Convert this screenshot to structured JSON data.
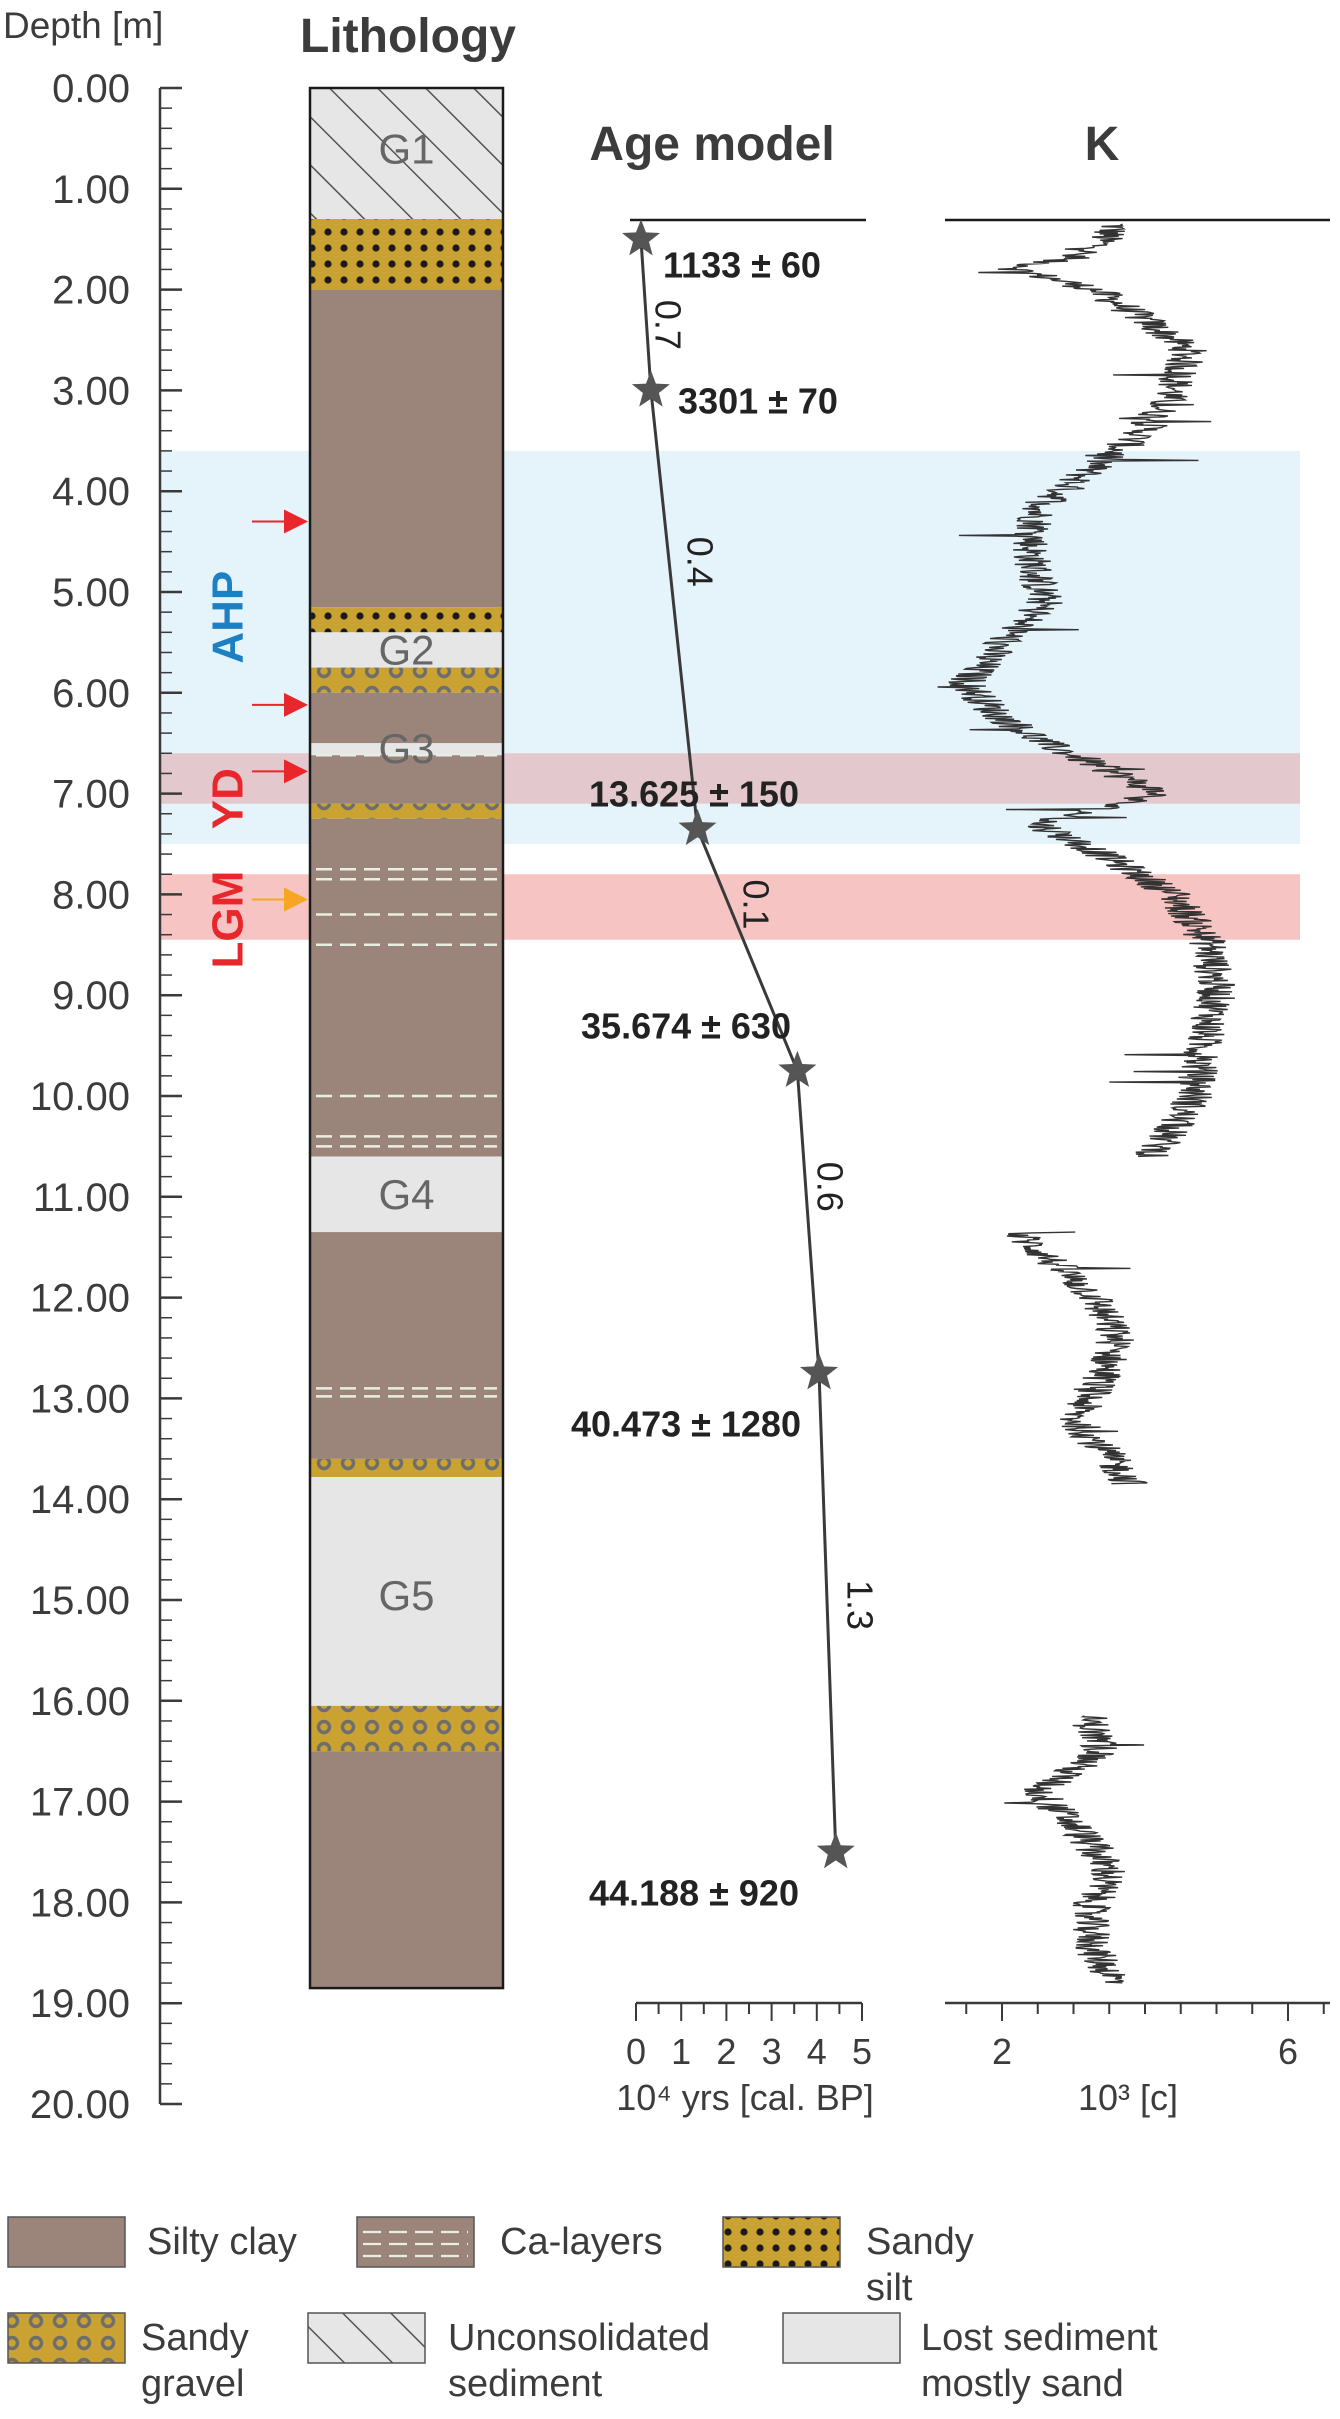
{
  "depth_axis": {
    "label": "Depth [m]",
    "ticks": [
      "0.00",
      "1.00",
      "2.00",
      "3.00",
      "4.00",
      "5.00",
      "6.00",
      "7.00",
      "8.00",
      "9.00",
      "10.00",
      "11.00",
      "12.00",
      "13.00",
      "14.00",
      "15.00",
      "16.00",
      "17.00",
      "18.00",
      "19.00",
      "20.00"
    ],
    "range": [
      0,
      20
    ]
  },
  "lithology": {
    "title": "Lithology",
    "units": [
      {
        "top": 0.0,
        "bottom": 1.3,
        "type": "unconsolidated"
      },
      {
        "top": 1.3,
        "bottom": 2.0,
        "type": "sandy_silt"
      },
      {
        "top": 2.0,
        "bottom": 5.15,
        "type": "silty_clay"
      },
      {
        "top": 5.15,
        "bottom": 5.4,
        "type": "sandy_silt"
      },
      {
        "top": 5.4,
        "bottom": 5.75,
        "type": "lost"
      },
      {
        "top": 5.75,
        "bottom": 6.0,
        "type": "sandy_gravel"
      },
      {
        "top": 6.0,
        "bottom": 6.5,
        "type": "silty_clay"
      },
      {
        "top": 6.5,
        "bottom": 6.62,
        "type": "lost"
      },
      {
        "top": 6.62,
        "bottom": 7.1,
        "type": "silty_clay"
      },
      {
        "top": 7.1,
        "bottom": 7.25,
        "type": "sandy_gravel"
      },
      {
        "top": 7.25,
        "bottom": 10.6,
        "type": "silty_clay"
      },
      {
        "top": 10.6,
        "bottom": 11.35,
        "type": "lost"
      },
      {
        "top": 11.35,
        "bottom": 13.6,
        "type": "silty_clay"
      },
      {
        "top": 13.6,
        "bottom": 13.78,
        "type": "sandy_gravel"
      },
      {
        "top": 13.78,
        "bottom": 16.05,
        "type": "lost"
      },
      {
        "top": 16.05,
        "bottom": 16.5,
        "type": "sandy_gravel"
      },
      {
        "top": 16.5,
        "bottom": 18.85,
        "type": "silty_clay"
      }
    ],
    "ca_layers": [
      6.62,
      7.75,
      7.85,
      8.2,
      8.5,
      10.0,
      10.4,
      10.5,
      12.9,
      12.98
    ],
    "group_labels": [
      {
        "text": "G1",
        "depth": 0.6
      },
      {
        "text": "G2",
        "depth": 5.57
      },
      {
        "text": "G3",
        "depth": 6.55
      },
      {
        "text": "G4",
        "depth": 10.97
      },
      {
        "text": "G5",
        "depth": 14.95
      }
    ],
    "arrows": [
      {
        "depth": 4.3,
        "color": "#e8262c"
      },
      {
        "depth": 6.12,
        "color": "#e8262c"
      },
      {
        "depth": 6.78,
        "color": "#e8262c"
      },
      {
        "depth": 8.05,
        "color": "#f6a623"
      }
    ]
  },
  "intervals": [
    {
      "label": "AHP",
      "top": 3.6,
      "bottom": 7.5,
      "color": "#e5f3fb",
      "text_color": "#1d7fc4",
      "label_depth": 5.25
    },
    {
      "label": "YD",
      "top": 6.6,
      "bottom": 7.1,
      "color": "#e3c9cd",
      "text_color": "#e8262c",
      "label_depth": 7.05
    },
    {
      "label": "LGM",
      "top": 7.8,
      "bottom": 8.45,
      "color": "#f6c5c3",
      "text_color": "#e8262c",
      "label_depth": 8.25
    }
  ],
  "age_model": {
    "title": "Age model",
    "xlabel": "10⁴ yrs [cal. BP]",
    "xticks": [
      "0",
      "1",
      "2",
      "3",
      "4",
      "5"
    ],
    "xlim": [
      0,
      5
    ],
    "points": [
      {
        "depth": 1.5,
        "age": 0.11
      },
      {
        "depth": 3.0,
        "age": 0.33
      },
      {
        "depth": 7.35,
        "age": 1.36
      },
      {
        "depth": 9.75,
        "age": 3.57
      },
      {
        "depth": 12.75,
        "age": 4.05
      },
      {
        "depth": 17.5,
        "age": 4.42
      }
    ],
    "date_labels": [
      {
        "text": "1133 ± 60",
        "depth": 1.75
      },
      {
        "text": "3301 ± 70",
        "depth": 3.1
      },
      {
        "text": "13.625 ± 150",
        "depth": 7.0
      },
      {
        "text": "35.674 ± 630",
        "depth": 9.3
      },
      {
        "text": "40.473 ± 1280",
        "depth": 13.25
      },
      {
        "text": "44.188 ± 920",
        "depth": 17.9
      }
    ],
    "rate_labels": [
      {
        "text": "0.7",
        "depth": 2.35
      },
      {
        "text": "0.4",
        "depth": 4.7
      },
      {
        "text": "0.1",
        "depth": 8.1
      },
      {
        "text": "0.6",
        "depth": 10.9
      },
      {
        "text": "1.3",
        "depth": 15.05
      }
    ]
  },
  "k_panel": {
    "title": "K",
    "xlabel": "10³ [c]",
    "xticks": [
      "2",
      "6"
    ],
    "xtick_values": [
      2,
      6
    ],
    "xlim": [
      1,
      6.5
    ],
    "segments": [
      {
        "start": 1.35,
        "end": 10.6,
        "profile": [
          [
            1.35,
            3.6
          ],
          [
            1.6,
            3.3
          ],
          [
            1.8,
            2.2
          ],
          [
            2.0,
            3.3
          ],
          [
            2.3,
            4.0
          ],
          [
            2.6,
            4.6
          ],
          [
            3.0,
            4.4
          ],
          [
            3.4,
            4.0
          ],
          [
            3.8,
            3.2
          ],
          [
            4.2,
            2.5
          ],
          [
            4.6,
            2.4
          ],
          [
            4.9,
            2.5
          ],
          [
            5.1,
            2.6
          ],
          [
            5.5,
            2.0
          ],
          [
            5.9,
            1.5
          ],
          [
            6.2,
            1.9
          ],
          [
            6.5,
            2.6
          ],
          [
            6.8,
            3.6
          ],
          [
            7.0,
            4.2
          ],
          [
            7.3,
            2.5
          ],
          [
            7.6,
            3.4
          ],
          [
            8.0,
            4.4
          ],
          [
            8.5,
            4.9
          ],
          [
            9.0,
            5.0
          ],
          [
            9.5,
            4.8
          ],
          [
            10.0,
            4.7
          ],
          [
            10.3,
            4.4
          ],
          [
            10.6,
            4.1
          ]
        ]
      },
      {
        "start": 11.35,
        "end": 13.85,
        "profile": [
          [
            11.35,
            2.2
          ],
          [
            11.7,
            2.8
          ],
          [
            12.0,
            3.3
          ],
          [
            12.4,
            3.6
          ],
          [
            12.8,
            3.4
          ],
          [
            13.2,
            3.0
          ],
          [
            13.5,
            3.4
          ],
          [
            13.85,
            3.8
          ]
        ]
      },
      {
        "start": 16.15,
        "end": 18.8,
        "profile": [
          [
            16.15,
            3.2
          ],
          [
            16.5,
            3.4
          ],
          [
            16.9,
            2.5
          ],
          [
            17.3,
            3.1
          ],
          [
            17.7,
            3.5
          ],
          [
            18.1,
            3.2
          ],
          [
            18.5,
            3.3
          ],
          [
            18.8,
            3.6
          ]
        ]
      }
    ]
  },
  "legend": [
    {
      "key": "silty_clay",
      "lines": [
        "Silty clay"
      ]
    },
    {
      "key": "ca_layers",
      "lines": [
        "Ca-layers"
      ]
    },
    {
      "key": "sandy_silt",
      "lines": [
        "Sandy",
        "silt"
      ]
    },
    {
      "key": "sandy_gravel",
      "lines": [
        "Sandy",
        "gravel"
      ]
    },
    {
      "key": "unconsolidated",
      "lines": [
        "Unconsolidated",
        "sediment"
      ]
    },
    {
      "key": "lost",
      "lines": [
        "Lost sediment",
        "mostly sand"
      ]
    }
  ],
  "colors": {
    "silty_clay": "#9b857b",
    "sandy": "#c9a232",
    "lost": "#e6e6e6",
    "line": "#3a3a3a",
    "tick_text": "#3c3c3c"
  }
}
